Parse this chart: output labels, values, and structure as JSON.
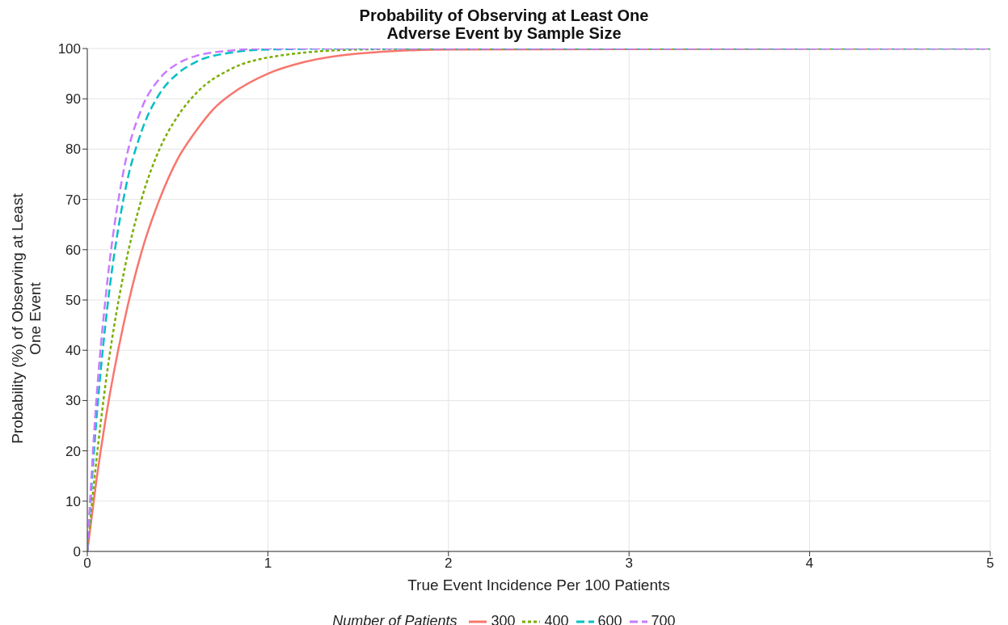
{
  "chart_data": {
    "type": "line",
    "title": "Probability of Observing at Least One Adverse Event by Sample Size",
    "xlabel": "True Event Incidence Per 100 Patients",
    "ylabel": "Probability (%) of Observing at Least One Event",
    "legend_title": "Number of Patients",
    "legend": "bottom",
    "grid": true,
    "marker": "none",
    "xlim": [
      0,
      5
    ],
    "xticks": [
      0,
      1,
      2,
      3,
      4,
      5
    ],
    "ylim": [
      0,
      100
    ],
    "yticks": [
      0,
      10,
      20,
      30,
      40,
      50,
      60,
      70,
      80,
      90,
      100
    ],
    "series": [
      {
        "name": "300",
        "color": "#f8766d",
        "line_style": "solid",
        "x": [
          0,
          0.05,
          0.1,
          0.2,
          0.3,
          0.4,
          0.5,
          0.6,
          0.7,
          0.8,
          1.0,
          1.2,
          1.5,
          2,
          5
        ],
        "values": [
          0,
          14,
          26,
          45,
          59.5,
          70,
          78,
          83.5,
          88,
          91,
          95,
          97.3,
          99,
          99.8,
          100
        ]
      },
      {
        "name": "400",
        "color": "#7cae00",
        "line_style": "dotted",
        "x": [
          0,
          0.05,
          0.1,
          0.2,
          0.3,
          0.4,
          0.5,
          0.6,
          0.8,
          1.0,
          1.5,
          2,
          5
        ],
        "values": [
          0,
          18,
          33,
          55,
          70,
          80,
          86.5,
          91,
          96,
          98.2,
          99.8,
          100,
          100
        ]
      },
      {
        "name": "600",
        "color": "#00bfc4",
        "line_style": "dashed",
        "x": [
          0,
          0.05,
          0.1,
          0.2,
          0.3,
          0.4,
          0.5,
          0.6,
          0.8,
          1.0,
          1.5,
          5
        ],
        "values": [
          0,
          26,
          45,
          70,
          83.5,
          91,
          95,
          97.3,
          99.2,
          99.8,
          100,
          100
        ]
      },
      {
        "name": "700",
        "color": "#c77cff",
        "line_style": "dashed",
        "x": [
          0,
          0.05,
          0.1,
          0.2,
          0.3,
          0.4,
          0.5,
          0.6,
          0.8,
          1.0,
          5
        ],
        "values": [
          0,
          30,
          50,
          75.5,
          88,
          94,
          97,
          98.5,
          99.6,
          100,
          100
        ]
      }
    ]
  }
}
